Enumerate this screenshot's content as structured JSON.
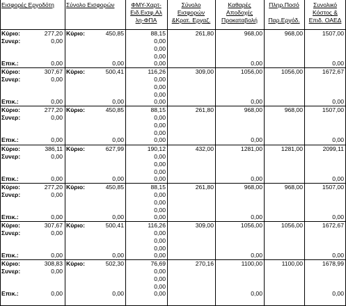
{
  "headers": [
    [
      "Εισφορές Εργοδότη"
    ],
    [
      "Σύνολο Εισφορών"
    ],
    [
      "ΦΜΥ-Χαρτ-",
      "Ειδ.Εισφ.Αλ",
      "λη-ΦΠΑ"
    ],
    [
      "Σύνολο",
      "Εισφορών",
      "&Κρατ. Εργαζ."
    ],
    [
      "Καθαρές",
      "Αποδοχές",
      "Προκαταβολή"
    ],
    [
      "Πληρ.Ποσό",
      "",
      "Παρ.Εργόδ."
    ],
    [
      "Συνολικό",
      "Κόστος &",
      "Επιδ. ΟΑΕΔ"
    ]
  ],
  "labels": {
    "kyrio": "Κύριο:",
    "syner": "Συνερ:",
    "epik": "Επικ.:"
  },
  "zero": "0,00",
  "records": [
    {
      "erg": "277,20",
      "syn": "450,85",
      "fmy": "88,15",
      "syn_eisf": "261,80",
      "kath": "968,00",
      "plir": "968,00",
      "kostos": "1507,00"
    },
    {
      "erg": "307,67",
      "syn": "500,41",
      "fmy": "116,26",
      "syn_eisf": "309,00",
      "kath": "1056,00",
      "plir": "1056,00",
      "kostos": "1672,67"
    },
    {
      "erg": "277,20",
      "syn": "450,85",
      "fmy": "88,15",
      "syn_eisf": "261,80",
      "kath": "968,00",
      "plir": "968,00",
      "kostos": "1507,00"
    },
    {
      "erg": "386,11",
      "syn": "627,99",
      "fmy": "190,12",
      "syn_eisf": "432,00",
      "kath": "1281,00",
      "plir": "1281,00",
      "kostos": "2099,11"
    },
    {
      "erg": "277,20",
      "syn": "450,85",
      "fmy": "88,15",
      "syn_eisf": "261,80",
      "kath": "968,00",
      "plir": "968,00",
      "kostos": "1507,00"
    },
    {
      "erg": "307,67",
      "syn": "500,41",
      "fmy": "116,26",
      "syn_eisf": "309,00",
      "kath": "1056,00",
      "plir": "1056,00",
      "kostos": "1672,67"
    },
    {
      "erg": "308,83",
      "syn": "502,30",
      "fmy": "76,69",
      "syn_eisf": "270,16",
      "kath": "1100,00",
      "plir": "1100,00",
      "kostos": "1678,99"
    }
  ]
}
